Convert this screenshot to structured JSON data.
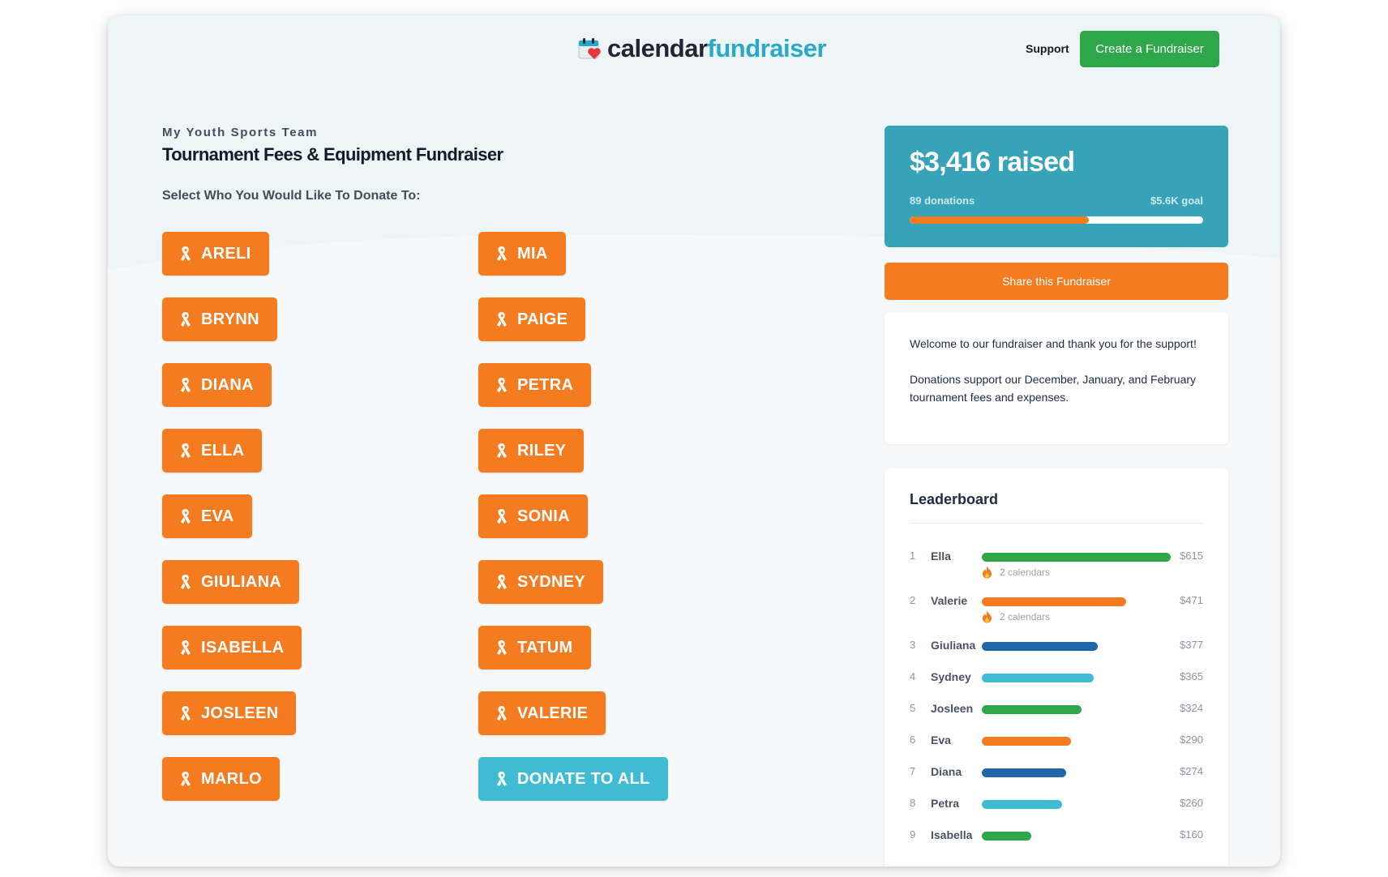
{
  "header": {
    "logo_part1": "calendar",
    "logo_part2": "fundraiser",
    "support_label": "Support",
    "create_label": "Create a Fundraiser"
  },
  "fundraiser": {
    "organization": "My Youth Sports Team",
    "title": "Tournament Fees & Equipment Fundraiser",
    "prompt": "Select Who You Would Like To Donate To:"
  },
  "participants": {
    "left": [
      "ARELI",
      "BRYNN",
      "DIANA",
      "ELLA",
      "EVA",
      "GIULIANA",
      "ISABELLA",
      "JOSLEEN",
      "MARLO"
    ],
    "right": [
      "MIA",
      "PAIGE",
      "PETRA",
      "RILEY",
      "SONIA",
      "SYDNEY",
      "TATUM",
      "VALERIE"
    ],
    "donate_all": "DONATE TO ALL"
  },
  "progress": {
    "raised": "$3,416 raised",
    "donations": "89 donations",
    "goal": "$5.6K goal",
    "fraction": 0.61
  },
  "share_label": "Share this Fundraiser",
  "welcome": {
    "line1": "Welcome to our fundraiser and thank you for the support!",
    "line2": "Donations support our December, January, and February tournament fees and expenses."
  },
  "leaderboard": {
    "title": "Leaderboard",
    "max_amount": 615,
    "entries": [
      {
        "rank": "1",
        "name": "Ella",
        "amount": "$615",
        "value": 615,
        "color": "#2ea64a",
        "calendars": "2 calendars"
      },
      {
        "rank": "2",
        "name": "Valerie",
        "amount": "$471",
        "value": 471,
        "color": "#f47b20",
        "calendars": "2 calendars"
      },
      {
        "rank": "3",
        "name": "Giuliana",
        "amount": "$377",
        "value": 377,
        "color": "#2166a8"
      },
      {
        "rank": "4",
        "name": "Sydney",
        "amount": "$365",
        "value": 365,
        "color": "#3fbcd3"
      },
      {
        "rank": "5",
        "name": "Josleen",
        "amount": "$324",
        "value": 324,
        "color": "#2ea64a"
      },
      {
        "rank": "6",
        "name": "Eva",
        "amount": "$290",
        "value": 290,
        "color": "#f47b20"
      },
      {
        "rank": "7",
        "name": "Diana",
        "amount": "$274",
        "value": 274,
        "color": "#2166a8"
      },
      {
        "rank": "8",
        "name": "Petra",
        "amount": "$260",
        "value": 260,
        "color": "#3fbcd3"
      },
      {
        "rank": "9",
        "name": "Isabella",
        "amount": "$160",
        "value": 160,
        "color": "#2ea64a"
      }
    ]
  }
}
